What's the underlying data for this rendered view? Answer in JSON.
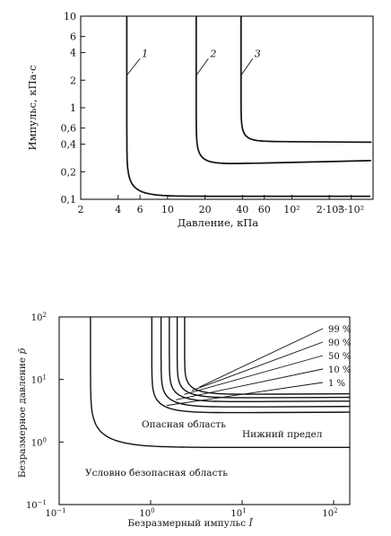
{
  "chart_data": [
    {
      "type": "line",
      "xlabel": "Давление, кПа",
      "ylabel": "Импульс, кПа·с",
      "x_scale": "log",
      "y_scale": "log",
      "xlim": [
        2,
        450
      ],
      "ylim": [
        0.1,
        10
      ],
      "x_ticks": [
        {
          "v": 2,
          "label": "2"
        },
        {
          "v": 4,
          "label": "4"
        },
        {
          "v": 6,
          "label": "6"
        },
        {
          "v": 10,
          "label": "10"
        },
        {
          "v": 20,
          "label": "20"
        },
        {
          "v": 40,
          "label": "40"
        },
        {
          "v": 60,
          "label": "60"
        },
        {
          "v": 100,
          "label": "10²"
        },
        {
          "v": 200,
          "label": "2·10²"
        },
        {
          "v": 300,
          "label": "3·10²"
        }
      ],
      "y_ticks": [
        {
          "v": 0.1,
          "label": "0,1"
        },
        {
          "v": 0.2,
          "label": "0,2"
        },
        {
          "v": 0.4,
          "label": "0,4"
        },
        {
          "v": 0.6,
          "label": "0,6"
        },
        {
          "v": 1,
          "label": "1"
        },
        {
          "v": 2,
          "label": "2"
        },
        {
          "v": 4,
          "label": "4"
        },
        {
          "v": 6,
          "label": "6"
        },
        {
          "v": 10,
          "label": "10"
        }
      ],
      "curve_labels": [
        "1",
        "2",
        "3"
      ],
      "series": [
        {
          "asymptote_x": 4.7,
          "asymptote_y": 0.108,
          "exp": 6,
          "label_at": {
            "x": 6.2,
            "y": 3.6
          },
          "leader_y": 2.3
        },
        {
          "asymptote_x": 17,
          "asymptote_y": 0.24,
          "end_y": 0.265,
          "exp": 5,
          "label_at": {
            "x": 22,
            "y": 3.6
          },
          "leader_y": 2.3
        },
        {
          "asymptote_x": 39,
          "asymptote_y": 0.43,
          "end_y": 0.42,
          "exp": 5,
          "label_at": {
            "x": 50,
            "y": 3.6
          },
          "leader_y": 2.3
        }
      ]
    },
    {
      "type": "line",
      "xlabel": "Безразмерный импульс ",
      "xlabel_symbol": "Ī",
      "ylabel": "Безразмерное давление ",
      "ylabel_symbol": "p̄",
      "x_scale": "log",
      "y_scale": "log",
      "xlim": [
        0.1,
        150
      ],
      "ylim": [
        0.1,
        100
      ],
      "x_ticks": [
        {
          "v": 0.1,
          "base": "10",
          "exp": "−1"
        },
        {
          "v": 1,
          "base": "10",
          "exp": "0"
        },
        {
          "v": 10,
          "base": "10",
          "exp": "1"
        },
        {
          "v": 100,
          "base": "10",
          "exp": "2"
        }
      ],
      "y_ticks": [
        {
          "v": 0.1,
          "base": "10",
          "exp": "−1"
        },
        {
          "v": 1,
          "base": "10",
          "exp": "0"
        },
        {
          "v": 10,
          "base": "10",
          "exp": "1"
        },
        {
          "v": 100,
          "base": "10",
          "exp": "2"
        }
      ],
      "annotations": [
        "Опасная область",
        "Нижний предел",
        "Условно безопасная область"
      ],
      "percent_labels": [
        "99 %",
        "90 %",
        "50 %",
        "10 %",
        "1 %"
      ],
      "lower_limit": {
        "asymptote_x": 0.22,
        "asymptote_y": 0.82,
        "exp": 3
      },
      "percent_curves": [
        {
          "label": "99 %",
          "asymptote_x": 2.35,
          "asymptote_y": 5.9
        },
        {
          "label": "90 %",
          "asymptote_x": 1.95,
          "asymptote_y": 5.2
        },
        {
          "label": "50 %",
          "asymptote_x": 1.6,
          "asymptote_y": 4.5
        },
        {
          "label": "10 %",
          "asymptote_x": 1.3,
          "asymptote_y": 3.7
        },
        {
          "label": "1 %",
          "asymptote_x": 1.03,
          "asymptote_y": 3.0
        }
      ],
      "grid": false
    }
  ]
}
